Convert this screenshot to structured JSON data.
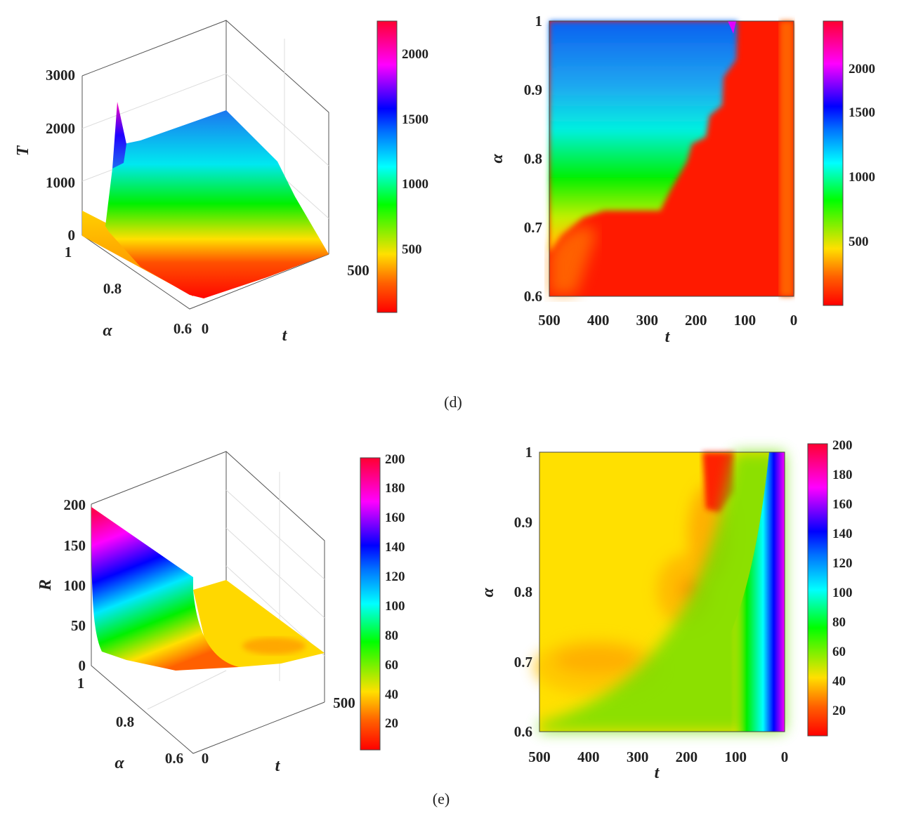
{
  "captions": {
    "d": "(d)",
    "e": "(e)"
  },
  "colormap": [
    "#ff0000",
    "#ff8000",
    "#ffff00",
    "#00ff00",
    "#00ffff",
    "#0000ff",
    "#ff00ff",
    "#ff0033"
  ],
  "chart_data": [
    {
      "panel": "d-surface",
      "type": "surface",
      "xlabel": "t",
      "ylabel": "α",
      "zlabel": "T",
      "xlim": [
        0,
        500
      ],
      "ylim": [
        0.6,
        1
      ],
      "zlim": [
        0,
        3000
      ],
      "x_ticks": [
        "0",
        "500"
      ],
      "y_ticks": [
        "1",
        "0.8",
        "0.6"
      ],
      "z_ticks": [
        "0",
        "1000",
        "2000",
        "3000"
      ],
      "colorbar": {
        "range": [
          50,
          2250
        ],
        "ticks": [
          "500",
          "1000",
          "1500",
          "2000"
        ]
      }
    },
    {
      "panel": "d-contour",
      "type": "heatmap",
      "xlabel": "t",
      "ylabel": "α",
      "xlim": [
        500,
        0
      ],
      "ylim": [
        0.6,
        1
      ],
      "x_ticks": [
        "500",
        "400",
        "300",
        "200",
        "100",
        "0"
      ],
      "y_ticks": [
        "0.6",
        "0.7",
        "0.8",
        "0.9",
        "1"
      ],
      "colorbar": {
        "range": [
          50,
          2250
        ],
        "ticks": [
          "500",
          "1000",
          "1500",
          "2000"
        ]
      }
    },
    {
      "panel": "e-surface",
      "type": "surface",
      "xlabel": "t",
      "ylabel": "α",
      "zlabel": "R",
      "xlim": [
        0,
        500
      ],
      "ylim": [
        0.6,
        1
      ],
      "zlim": [
        0,
        200
      ],
      "x_ticks": [
        "0",
        "500"
      ],
      "y_ticks": [
        "1",
        "0.8",
        "0.6"
      ],
      "z_ticks": [
        "0",
        "50",
        "100",
        "150",
        "200"
      ],
      "colorbar": {
        "range": [
          2,
          200
        ],
        "ticks": [
          "20",
          "40",
          "60",
          "80",
          "100",
          "120",
          "140",
          "160",
          "180",
          "200"
        ]
      }
    },
    {
      "panel": "e-contour",
      "type": "heatmap",
      "xlabel": "t",
      "ylabel": "α",
      "xlim": [
        500,
        0
      ],
      "ylim": [
        0.6,
        1
      ],
      "x_ticks": [
        "500",
        "400",
        "300",
        "200",
        "100",
        "0"
      ],
      "y_ticks": [
        "0.6",
        "0.7",
        "0.8",
        "0.9",
        "1"
      ],
      "colorbar": {
        "range": [
          2,
          200
        ],
        "ticks": [
          "20",
          "40",
          "60",
          "80",
          "100",
          "120",
          "140",
          "160",
          "180",
          "200"
        ]
      }
    }
  ]
}
